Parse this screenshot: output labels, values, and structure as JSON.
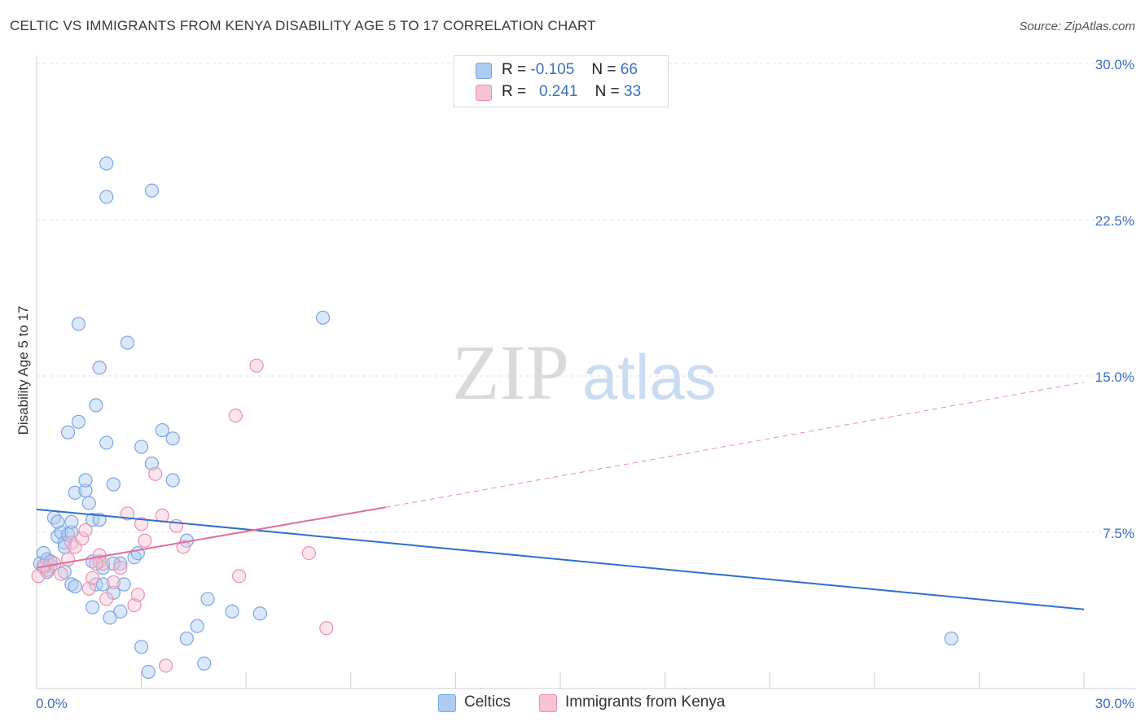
{
  "title": "CELTIC VS IMMIGRANTS FROM KENYA DISABILITY AGE 5 TO 17 CORRELATION CHART",
  "source": "Source: ZipAtlas.com",
  "watermark": {
    "zip": "ZIP",
    "atlas": "atlas"
  },
  "legend_top": [
    {
      "r_label": "R =",
      "r_value": "-0.105",
      "n_label": "N =",
      "n_value": "66",
      "color": "#aecbf2",
      "border": "#7aa6e0"
    },
    {
      "r_label": "R =",
      "r_value": "0.241",
      "n_label": "N =",
      "n_value": "33",
      "color": "#f7c3d4",
      "border": "#e891ae"
    }
  ],
  "legend_bottom": [
    {
      "label": "Celtics",
      "color": "#aecbf2",
      "border": "#7aa6e0"
    },
    {
      "label": "Immigrants from Kenya",
      "color": "#f7c3d4",
      "border": "#e891ae"
    }
  ],
  "chart_data": {
    "type": "scatter",
    "title": "CELTIC VS IMMIGRANTS FROM KENYA DISABILITY AGE 5 TO 17 CORRELATION CHART",
    "xlabel": "",
    "ylabel": "Disability Age 5 to 17",
    "xlim": [
      0,
      30
    ],
    "ylim": [
      0,
      30
    ],
    "x_tick_labels": [
      "0.0%",
      "30.0%"
    ],
    "y_tick_labels": [
      {
        "value": 7.5,
        "label": "7.5%"
      },
      {
        "value": 15.0,
        "label": "15.0%"
      },
      {
        "value": 22.5,
        "label": "22.5%"
      },
      {
        "value": 30.0,
        "label": "30.0%"
      }
    ],
    "grid": true,
    "series": [
      {
        "name": "Celtics",
        "color": "#7aa6e0",
        "fill": "rgba(174,203,242,0.45)",
        "trend": {
          "x": [
            0,
            30
          ],
          "y": [
            8.6,
            3.8
          ],
          "color": "#2f6fce",
          "dashed_beyond": null
        },
        "points": [
          [
            0.1,
            6.0
          ],
          [
            0.2,
            5.8
          ],
          [
            0.3,
            5.6
          ],
          [
            0.2,
            6.5
          ],
          [
            0.3,
            6.2
          ],
          [
            0.4,
            5.9
          ],
          [
            0.5,
            8.2
          ],
          [
            0.6,
            7.3
          ],
          [
            0.7,
            7.5
          ],
          [
            0.8,
            7.0
          ],
          [
            0.9,
            7.4
          ],
          [
            0.6,
            8.0
          ],
          [
            0.8,
            6.8
          ],
          [
            1.0,
            7.5
          ],
          [
            1.0,
            8.0
          ],
          [
            1.1,
            9.4
          ],
          [
            1.2,
            12.8
          ],
          [
            0.9,
            12.3
          ],
          [
            1.2,
            17.5
          ],
          [
            1.4,
            9.5
          ],
          [
            1.4,
            10.0
          ],
          [
            1.5,
            8.9
          ],
          [
            1.6,
            8.1
          ],
          [
            1.7,
            13.6
          ],
          [
            1.8,
            8.1
          ],
          [
            1.8,
            15.4
          ],
          [
            2.0,
            11.8
          ],
          [
            1.6,
            6.1
          ],
          [
            1.8,
            6.1
          ],
          [
            1.9,
            5.8
          ],
          [
            1.7,
            5.0
          ],
          [
            1.6,
            3.9
          ],
          [
            1.0,
            5.0
          ],
          [
            1.1,
            4.9
          ],
          [
            2.2,
            9.8
          ],
          [
            2.4,
            6.0
          ],
          [
            2.4,
            3.7
          ],
          [
            2.2,
            4.6
          ],
          [
            2.1,
            3.4
          ],
          [
            2.8,
            6.3
          ],
          [
            3.0,
            11.6
          ],
          [
            3.3,
            10.8
          ],
          [
            3.6,
            12.4
          ],
          [
            3.9,
            12.0
          ],
          [
            3.9,
            10.0
          ],
          [
            4.3,
            7.1
          ],
          [
            2.6,
            16.6
          ],
          [
            2.0,
            23.6
          ],
          [
            2.0,
            25.2
          ],
          [
            3.3,
            23.9
          ],
          [
            8.2,
            17.8
          ],
          [
            4.9,
            4.3
          ],
          [
            5.6,
            3.7
          ],
          [
            6.4,
            3.6
          ],
          [
            4.6,
            3.0
          ],
          [
            4.3,
            2.4
          ],
          [
            4.8,
            1.2
          ],
          [
            3.0,
            2.0
          ],
          [
            3.2,
            0.8
          ],
          [
            2.2,
            6.0
          ],
          [
            2.9,
            6.5
          ],
          [
            1.9,
            5.0
          ],
          [
            0.8,
            5.6
          ],
          [
            26.2,
            2.4
          ],
          [
            0.4,
            6.1
          ],
          [
            2.5,
            5.0
          ]
        ]
      },
      {
        "name": "Immigrants from Kenya",
        "color": "#e891ae",
        "fill": "rgba(247,195,212,0.45)",
        "trend": {
          "x": [
            0,
            10
          ],
          "y": [
            5.8,
            8.7
          ],
          "color": "#e0709a",
          "dashed_beyond": [
            10,
            30,
            14.7
          ]
        },
        "points": [
          [
            0.05,
            5.4
          ],
          [
            0.3,
            5.7
          ],
          [
            0.5,
            6.0
          ],
          [
            0.7,
            5.5
          ],
          [
            0.9,
            6.2
          ],
          [
            1.0,
            7.0
          ],
          [
            1.1,
            6.8
          ],
          [
            1.3,
            7.2
          ],
          [
            1.4,
            7.6
          ],
          [
            1.5,
            4.8
          ],
          [
            1.6,
            5.3
          ],
          [
            1.8,
            6.4
          ],
          [
            1.9,
            6.0
          ],
          [
            2.0,
            4.3
          ],
          [
            2.2,
            5.1
          ],
          [
            2.4,
            5.8
          ],
          [
            2.6,
            8.4
          ],
          [
            2.8,
            4.0
          ],
          [
            2.9,
            4.5
          ],
          [
            3.0,
            7.9
          ],
          [
            3.1,
            7.1
          ],
          [
            3.4,
            10.3
          ],
          [
            3.6,
            8.3
          ],
          [
            4.0,
            7.8
          ],
          [
            4.2,
            6.8
          ],
          [
            5.7,
            13.1
          ],
          [
            5.8,
            5.4
          ],
          [
            6.3,
            15.5
          ],
          [
            7.8,
            6.5
          ],
          [
            8.3,
            2.9
          ],
          [
            3.7,
            1.1
          ],
          [
            0.2,
            5.9
          ],
          [
            1.7,
            6.0
          ]
        ]
      }
    ]
  }
}
